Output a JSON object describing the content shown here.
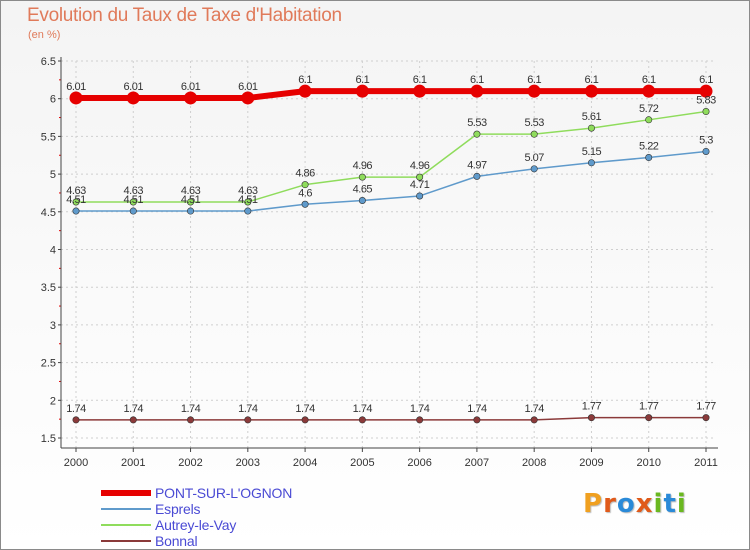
{
  "title": "Evolution du Taux de Taxe d'Habitation",
  "subtitle": "(en %)",
  "brand": {
    "text": "Proxiti",
    "letter_colors": [
      "#f0a020",
      "#e05a1a",
      "#2a8ad8",
      "#e05a1a",
      "#6ab820",
      "#2a8ad8",
      "#6ab820"
    ]
  },
  "chart_data": {
    "type": "line",
    "title": "Evolution du Taux de Taxe d'Habitation",
    "subtitle": "(en %)",
    "x": [
      "2000",
      "2001",
      "2002",
      "2003",
      "2004",
      "2005",
      "2006",
      "2007",
      "2008",
      "2009",
      "2010",
      "2011"
    ],
    "ylim": [
      1.5,
      6.5
    ],
    "yticks": [
      "1.5",
      "2",
      "2.5",
      "3",
      "3.5",
      "4",
      "4.5",
      "5",
      "5.5",
      "6",
      "6.5"
    ],
    "grid": true,
    "legend_position": "bottom-left",
    "series": [
      {
        "name": "PONT-SUR-L'OGNON",
        "color": "#e60000",
        "values": [
          6.01,
          6.01,
          6.01,
          6.01,
          6.1,
          6.1,
          6.1,
          6.1,
          6.1,
          6.1,
          6.1,
          6.1
        ],
        "labels": [
          "6.01",
          "6.01",
          "6.01",
          "6.01",
          "6.1",
          "6.1",
          "6.1",
          "6.1",
          "6.1",
          "6.1",
          "6.1",
          "6.1"
        ]
      },
      {
        "name": "Esprels",
        "color": "#5f9acb",
        "values": [
          4.51,
          4.51,
          4.51,
          4.51,
          4.6,
          4.65,
          4.71,
          4.97,
          5.07,
          5.15,
          5.22,
          5.3
        ],
        "labels": [
          "4.51",
          "4.51",
          "4.51",
          "4.51",
          "4.6",
          "4.65",
          "4.71",
          "4.97",
          "5.07",
          "5.15",
          "5.22",
          "5.3"
        ]
      },
      {
        "name": "Autrey-le-Vay",
        "color": "#8fdc5c",
        "values": [
          4.63,
          4.63,
          4.63,
          4.63,
          4.86,
          4.96,
          4.96,
          5.53,
          5.53,
          5.61,
          5.72,
          5.83
        ],
        "labels": [
          "4.63",
          "4.63",
          "4.63",
          "4.63",
          "4.86",
          "4.96",
          "4.96",
          "5.53",
          "5.53",
          "5.61",
          "5.72",
          "5.83"
        ]
      },
      {
        "name": "Bonnal",
        "color": "#8b3a3a",
        "values": [
          1.74,
          1.74,
          1.74,
          1.74,
          1.74,
          1.74,
          1.74,
          1.74,
          1.74,
          1.77,
          1.77,
          1.77
        ],
        "labels": [
          "1.74",
          "1.74",
          "1.74",
          "1.74",
          "1.74",
          "1.74",
          "1.74",
          "1.74",
          "1.74",
          "1.77",
          "1.77",
          "1.77"
        ]
      }
    ]
  }
}
